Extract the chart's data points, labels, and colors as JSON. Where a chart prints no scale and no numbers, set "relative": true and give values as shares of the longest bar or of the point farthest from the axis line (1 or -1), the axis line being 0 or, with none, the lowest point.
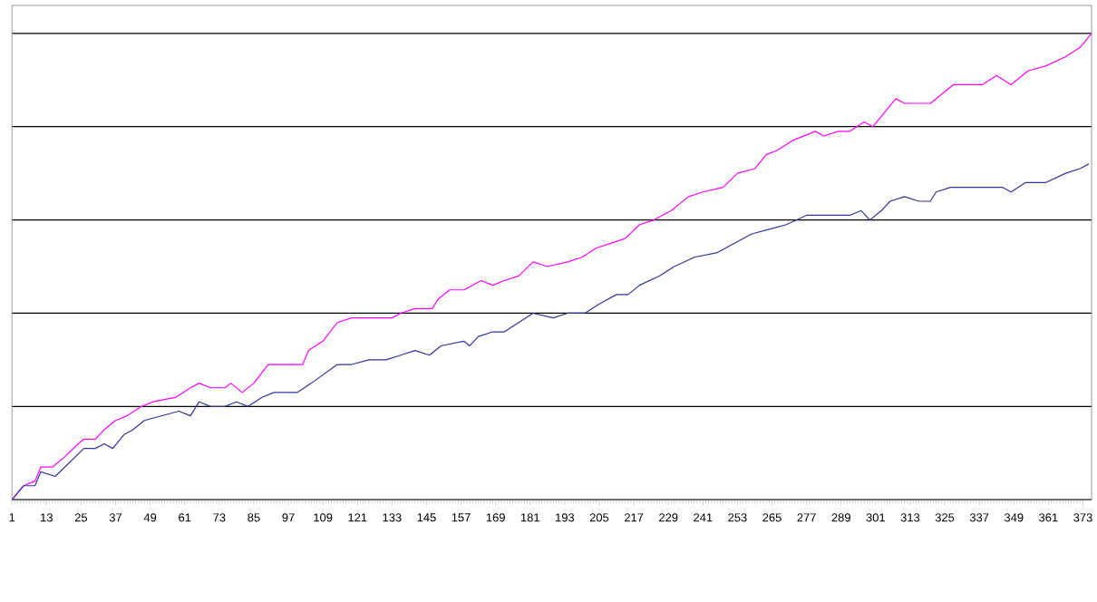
{
  "chart_data": {
    "type": "line",
    "relative": true,
    "grid": "y",
    "marker": "none",
    "line_style": "solid",
    "xlim": [
      1,
      376
    ],
    "xticks": [
      1,
      13,
      25,
      37,
      49,
      61,
      73,
      85,
      97,
      109,
      121,
      133,
      145,
      157,
      169,
      181,
      193,
      205,
      217,
      229,
      241,
      253,
      265,
      277,
      289,
      301,
      313,
      325,
      337,
      349,
      361,
      373
    ],
    "series": [
      {
        "color": "#ff00ff",
        "x": [
          1,
          5,
          9,
          11,
          15,
          19,
          24,
          26,
          30,
          33,
          37,
          41,
          46,
          50,
          58,
          63,
          66,
          70,
          75,
          77,
          81,
          85,
          90,
          93,
          98,
          102,
          104,
          109,
          114,
          119,
          126,
          133,
          136,
          141,
          147,
          149,
          153,
          158,
          164,
          168,
          172,
          177,
          182,
          187,
          194,
          199,
          204,
          209,
          214,
          219,
          224,
          230,
          236,
          241,
          248,
          253,
          259,
          263,
          267,
          272,
          280,
          283,
          288,
          292,
          297,
          300,
          304,
          308,
          311,
          316,
          320,
          324,
          328,
          333,
          338,
          343,
          348,
          354,
          360,
          367,
          372,
          376
        ],
        "values": [
          0,
          0.03,
          0.04,
          0.07,
          0.07,
          0.09,
          0.12,
          0.13,
          0.13,
          0.15,
          0.17,
          0.18,
          0.2,
          0.21,
          0.22,
          0.24,
          0.25,
          0.24,
          0.24,
          0.25,
          0.23,
          0.25,
          0.29,
          0.29,
          0.29,
          0.29,
          0.32,
          0.34,
          0.38,
          0.39,
          0.39,
          0.39,
          0.4,
          0.41,
          0.41,
          0.43,
          0.45,
          0.45,
          0.47,
          0.46,
          0.47,
          0.48,
          0.51,
          0.5,
          0.51,
          0.52,
          0.54,
          0.55,
          0.56,
          0.59,
          0.6,
          0.62,
          0.65,
          0.66,
          0.67,
          0.7,
          0.71,
          0.74,
          0.75,
          0.77,
          0.79,
          0.78,
          0.79,
          0.79,
          0.81,
          0.8,
          0.83,
          0.86,
          0.85,
          0.85,
          0.85,
          0.87,
          0.89,
          0.89,
          0.89,
          0.91,
          0.89,
          0.92,
          0.93,
          0.95,
          0.97,
          1
        ]
      },
      {
        "color": "#333399",
        "x": [
          1,
          5,
          9,
          11,
          16,
          21,
          26,
          30,
          33,
          36,
          40,
          43,
          47,
          53,
          59,
          63,
          66,
          70,
          75,
          79,
          83,
          88,
          92,
          97,
          100,
          105,
          114,
          119,
          125,
          131,
          136,
          141,
          146,
          150,
          158,
          160,
          163,
          168,
          172,
          177,
          182,
          189,
          194,
          200,
          205,
          211,
          215,
          219,
          226,
          231,
          238,
          246,
          252,
          258,
          264,
          270,
          277,
          283,
          292,
          296,
          299,
          303,
          306,
          311,
          316,
          320,
          322,
          327,
          333,
          338,
          345,
          348,
          353,
          360,
          367,
          372,
          375
        ],
        "values": [
          0,
          0.03,
          0.03,
          0.06,
          0.05,
          0.08,
          0.11,
          0.11,
          0.12,
          0.11,
          0.14,
          0.15,
          0.17,
          0.18,
          0.19,
          0.18,
          0.21,
          0.2,
          0.2,
          0.21,
          0.2,
          0.22,
          0.23,
          0.23,
          0.23,
          0.25,
          0.29,
          0.29,
          0.3,
          0.3,
          0.31,
          0.32,
          0.31,
          0.33,
          0.34,
          0.33,
          0.35,
          0.36,
          0.36,
          0.38,
          0.4,
          0.39,
          0.4,
          0.4,
          0.42,
          0.44,
          0.44,
          0.46,
          0.48,
          0.5,
          0.52,
          0.53,
          0.55,
          0.57,
          0.58,
          0.59,
          0.61,
          0.61,
          0.61,
          0.62,
          0.6,
          0.62,
          0.64,
          0.65,
          0.64,
          0.64,
          0.66,
          0.67,
          0.67,
          0.67,
          0.67,
          0.66,
          0.68,
          0.68,
          0.7,
          0.71,
          0.72
        ]
      }
    ]
  }
}
